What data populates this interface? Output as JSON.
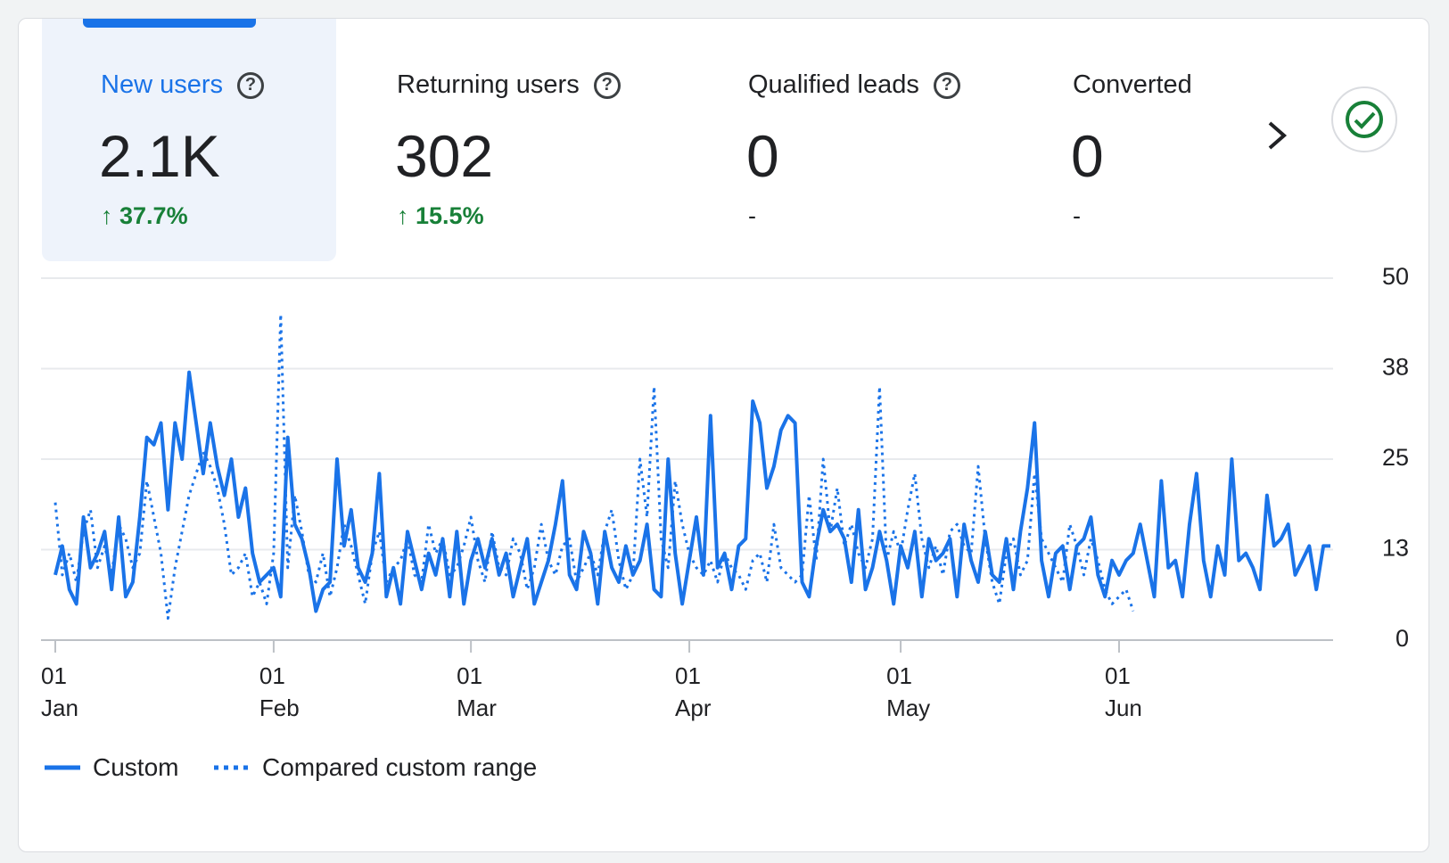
{
  "tabs": [
    {
      "label": "New users",
      "value": "2.1K",
      "change": "37.7%"
    },
    {
      "label": "Returning users",
      "value": "302",
      "change": "15.5%"
    },
    {
      "label": "Qualified leads",
      "value": "0",
      "change": "-"
    },
    {
      "label": "Converted",
      "value": "0",
      "change": "-"
    }
  ],
  "chart_data": {
    "type": "line",
    "grid": true,
    "categories": [
      "01 Jan",
      null,
      null,
      null,
      null,
      null,
      null,
      null,
      null,
      null,
      null,
      null,
      null,
      null,
      null,
      null,
      null,
      null,
      null,
      null,
      null,
      null,
      null,
      null,
      null,
      null,
      null,
      null,
      null,
      null,
      null,
      "01 Feb",
      null,
      null,
      null,
      null,
      null,
      null,
      null,
      null,
      null,
      null,
      null,
      null,
      null,
      null,
      null,
      null,
      null,
      null,
      null,
      null,
      null,
      null,
      null,
      null,
      null,
      null,
      null,
      "01 Mar",
      null,
      null,
      null,
      null,
      null,
      null,
      null,
      null,
      null,
      null,
      null,
      null,
      null,
      null,
      null,
      null,
      null,
      null,
      null,
      null,
      null,
      null,
      null,
      null,
      null,
      null,
      null,
      null,
      null,
      null,
      "01 Apr",
      null,
      null,
      null,
      null,
      null,
      null,
      null,
      null,
      null,
      null,
      null,
      null,
      null,
      null,
      null,
      null,
      null,
      null,
      null,
      null,
      null,
      null,
      null,
      null,
      null,
      null,
      null,
      null,
      null,
      "01 May",
      null,
      null,
      null,
      null,
      null,
      null,
      null,
      null,
      null,
      null,
      null,
      null,
      null,
      null,
      null,
      null,
      null,
      null,
      null,
      null,
      null,
      null,
      null,
      null,
      null,
      null,
      null,
      null,
      null,
      null,
      "01 Jun",
      null,
      null,
      null,
      null,
      null,
      null,
      null,
      null,
      null,
      null,
      null,
      null,
      null,
      null,
      null,
      null,
      null,
      null,
      null,
      null,
      null,
      null,
      null,
      null,
      null,
      null,
      null,
      null,
      null,
      null
    ],
    "series": [
      {
        "name": "Custom",
        "color": "#1a73e8",
        "style": "solid",
        "values": [
          9,
          13,
          7,
          5,
          17,
          10,
          12,
          15,
          7,
          17,
          6,
          8,
          17,
          28,
          27,
          30,
          18,
          30,
          25,
          37,
          30,
          23,
          30,
          24,
          20,
          25,
          17,
          21,
          12,
          8,
          9,
          10,
          6,
          28,
          16,
          14,
          10,
          4,
          7,
          8,
          25,
          13,
          18,
          10,
          8,
          12,
          23,
          6,
          10,
          5,
          15,
          11,
          7,
          12,
          9,
          14,
          6,
          15,
          5,
          11,
          14,
          10,
          14,
          9,
          12,
          6,
          10,
          14,
          5,
          8,
          11,
          16,
          22,
          9,
          7,
          15,
          12,
          5,
          15,
          10,
          8,
          13,
          9,
          11,
          16,
          7,
          6,
          25,
          12,
          5,
          11,
          17,
          9,
          31,
          10,
          12,
          7,
          13,
          14,
          33,
          30,
          21,
          24,
          29,
          31,
          30,
          8,
          6,
          13,
          18,
          15,
          16,
          14,
          8,
          18,
          7,
          10,
          15,
          11,
          5,
          13,
          10,
          15,
          6,
          14,
          11,
          12,
          14,
          6,
          16,
          11,
          8,
          15,
          9,
          8,
          14,
          7,
          15,
          21,
          30,
          11,
          6,
          12,
          13,
          7,
          13,
          14,
          17,
          9,
          6,
          11,
          9,
          11,
          12,
          16,
          11,
          6,
          22,
          10,
          11,
          6,
          16,
          23,
          11,
          6,
          13,
          9,
          25,
          11,
          12,
          10,
          7,
          20,
          13,
          14,
          16,
          9,
          11,
          13,
          7,
          13,
          13
        ]
      },
      {
        "name": "Compared custom range",
        "color": "#1a73e8",
        "style": "dotted",
        "values": [
          19,
          9,
          12,
          8,
          15,
          18,
          10,
          13,
          9,
          16,
          14,
          10,
          12,
          22,
          17,
          12,
          3,
          10,
          15,
          20,
          23,
          26,
          24,
          21,
          16,
          9,
          10,
          12,
          6,
          8,
          5,
          12,
          45,
          10,
          20,
          15,
          9,
          8,
          12,
          6,
          10,
          16,
          13,
          9,
          5,
          12,
          15,
          8,
          10,
          11,
          14,
          9,
          8,
          16,
          12,
          14,
          9,
          10,
          13,
          17,
          11,
          8,
          15,
          10,
          9,
          14,
          12,
          7,
          10,
          16,
          11,
          9,
          13,
          14,
          8,
          10,
          12,
          9,
          15,
          18,
          11,
          7,
          9,
          25,
          17,
          35,
          14,
          10,
          22,
          16,
          12,
          10,
          9,
          11,
          8,
          12,
          10,
          9,
          7,
          11,
          12,
          8,
          16,
          10,
          9,
          8,
          9,
          20,
          11,
          25,
          15,
          21,
          13,
          16,
          12,
          10,
          14,
          35,
          11,
          15,
          12,
          18,
          23,
          14,
          10,
          13,
          9,
          15,
          16,
          13,
          12,
          24,
          14,
          8,
          5,
          12,
          14,
          9,
          11,
          23,
          14,
          12,
          10,
          8,
          16,
          13,
          9,
          14,
          11,
          7,
          5,
          6,
          7,
          4,
          null,
          null,
          null,
          null,
          null,
          null,
          null,
          null,
          null,
          null,
          null,
          null,
          null,
          null,
          null,
          null,
          null,
          null,
          null,
          null,
          null,
          null,
          null,
          null,
          null,
          null,
          null,
          null
        ]
      }
    ],
    "ylim": [
      0,
      50
    ],
    "yticks": [
      0,
      {
        "value": 12.5,
        "label": "13"
      },
      25,
      {
        "value": 37.5,
        "label": "38"
      },
      50
    ]
  }
}
